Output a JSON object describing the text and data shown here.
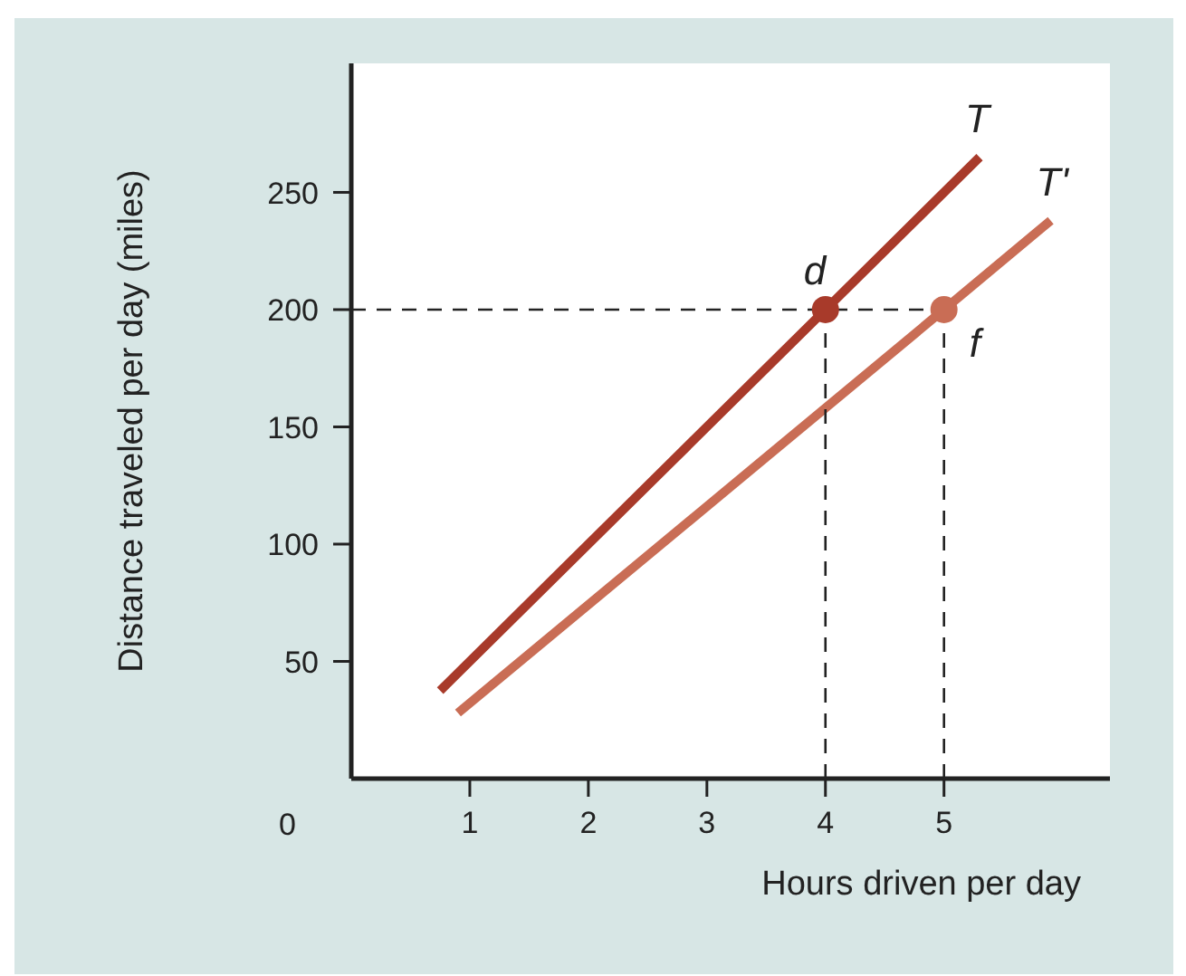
{
  "chart_data": {
    "type": "line",
    "xlabel": "Hours driven per day",
    "ylabel": "Distance traveled per day (miles)",
    "xlim": [
      0,
      6.4
    ],
    "ylim": [
      0,
      305
    ],
    "xticks": [
      1,
      2,
      3,
      4,
      5
    ],
    "yticks": [
      50,
      100,
      150,
      200,
      250
    ],
    "marker": "none",
    "line_style": "solid",
    "series": [
      {
        "name": "T",
        "color": "#a83a2a",
        "x": [
          0.75,
          4,
          5.3
        ],
        "values": [
          37.5,
          200,
          265
        ]
      },
      {
        "name": "T'",
        "color": "#c96d55",
        "x": [
          0.9,
          5,
          5.9
        ],
        "values": [
          28,
          200,
          238
        ]
      },
      {
        "type": "line",
        "color": "#222222",
        "line_style": "dashed",
        "x": [
          0,
          5
        ],
        "values": [
          200,
          200
        ]
      },
      {
        "type": "line",
        "color": "#222222",
        "line_style": "dashed",
        "x": [
          4,
          4
        ],
        "values": [
          0,
          200
        ]
      },
      {
        "type": "line",
        "color": "#222222",
        "line_style": "dashed",
        "x": [
          5,
          5
        ],
        "values": [
          0,
          200
        ]
      },
      {
        "type": "scatter",
        "color": "#a83a2a",
        "marker": "circle",
        "x": [
          4
        ],
        "values": [
          200
        ]
      },
      {
        "type": "scatter",
        "color": "#c96d55",
        "marker": "circle",
        "x": [
          5
        ],
        "values": [
          200
        ]
      }
    ],
    "annotations": [
      "0",
      {
        "text": "d",
        "x": 4,
        "y": 200
      },
      {
        "text": "f",
        "x": 5,
        "y": 200
      }
    ]
  }
}
